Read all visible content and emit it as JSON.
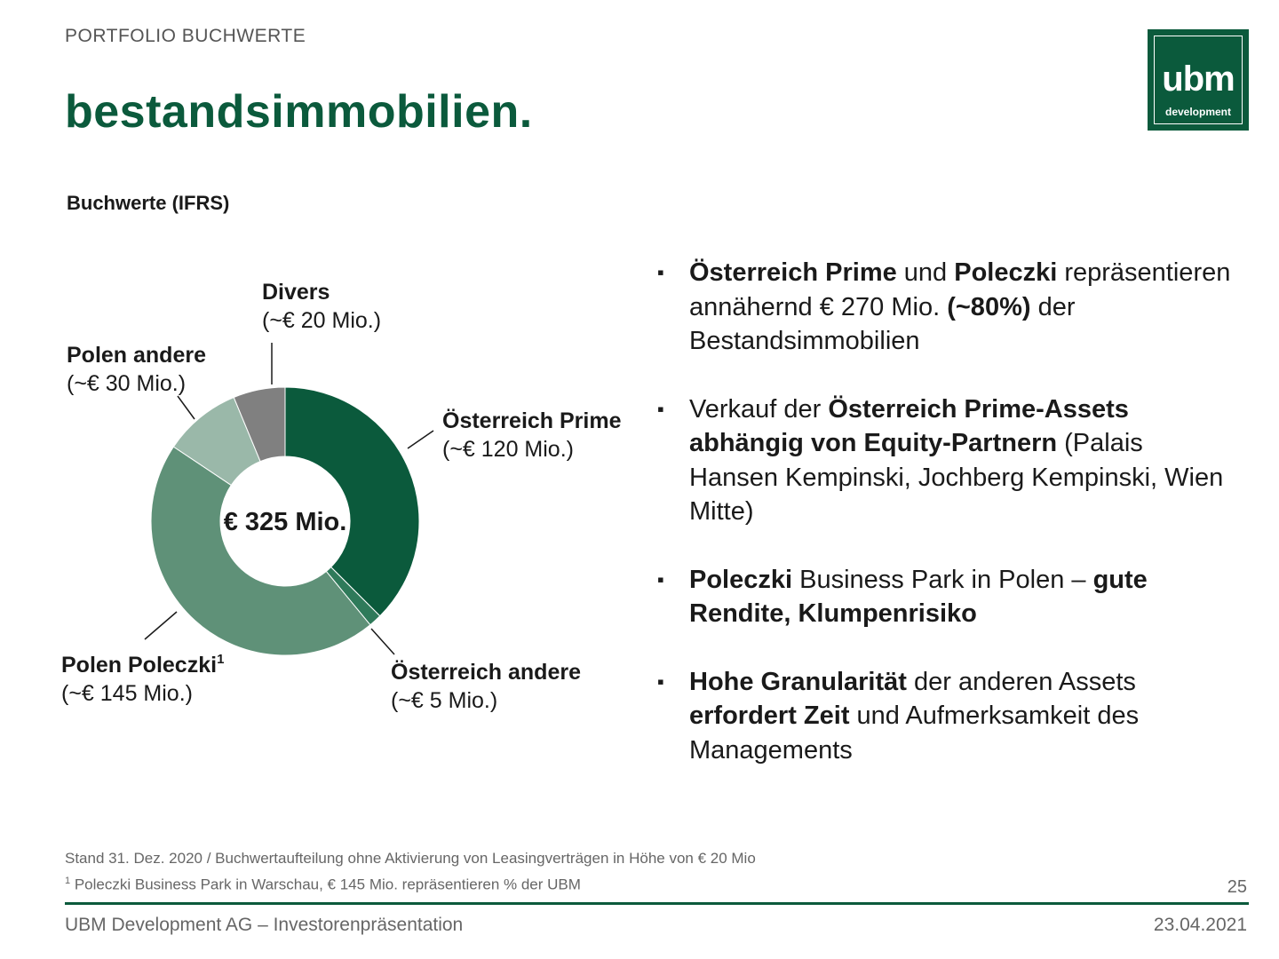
{
  "header": {
    "eyebrow": "PORTFOLIO BUCHWERTE",
    "title": "bestandsimmobilien.",
    "logo_word": "ubm",
    "logo_sub": "development"
  },
  "subtitle": "Buchwerte (IFRS)",
  "chart_data": {
    "type": "pie",
    "style": "donut",
    "title": "Buchwerte (IFRS)",
    "center_label": "€ 325 Mio.",
    "slices": [
      {
        "name": "Österreich Prime",
        "value_label": "(~€ 120 Mio.)",
        "value": 120,
        "color": "#0b5a3c"
      },
      {
        "name": "Österreich andere",
        "value_label": "(~€ 5 Mio.)",
        "value": 5,
        "color": "#2f7a5a"
      },
      {
        "name": "Polen Poleczki",
        "footnote_mark": "1",
        "value_label": "(~€ 145 Mio.)",
        "value": 145,
        "color": "#5f9178"
      },
      {
        "name": "Polen andere",
        "value_label": "(~€ 30 Mio.)",
        "value": 30,
        "color": "#9ab8a9"
      },
      {
        "name": "Divers",
        "value_label": "(~€ 20 Mio.)",
        "value": 20,
        "color": "#808080"
      }
    ]
  },
  "bullets": [
    {
      "parts": [
        [
          "b",
          "Österreich Prime"
        ],
        [
          "t",
          " und "
        ],
        [
          "b",
          "Poleczki"
        ],
        [
          "t",
          " repräsentieren annähernd € 270 Mio. "
        ],
        [
          "b",
          "(~80%)"
        ],
        [
          "t",
          " der Bestandsimmobilien"
        ]
      ]
    },
    {
      "parts": [
        [
          "t",
          "Verkauf der "
        ],
        [
          "b",
          "Österreich Prime-Assets abhängig von Equity-Partnern"
        ],
        [
          "t",
          " (Palais Hansen Kempinski, Jochberg Kempinski, Wien Mitte)"
        ]
      ]
    },
    {
      "parts": [
        [
          "b",
          "Poleczki"
        ],
        [
          "t",
          " Business Park in Polen – "
        ],
        [
          "b",
          "gute Rendite, Klumpenrisiko"
        ]
      ]
    },
    {
      "parts": [
        [
          "b",
          "Hohe Granularität"
        ],
        [
          "t",
          " der anderen Assets "
        ],
        [
          "b",
          "erfordert Zeit"
        ],
        [
          "t",
          " und Aufmerksamkeit des Managements"
        ]
      ]
    }
  ],
  "footnotes": {
    "line1": "Stand 31. Dez. 2020 / Buchwertaufteilung ohne Aktivierung von Leasingverträgen in Höhe von € 20 Mio",
    "line2_mark": "1",
    "line2": " Poleczki Business Park in Warschau, € 145 Mio. repräsentieren % der UBM"
  },
  "page_number": "25",
  "footer": {
    "left": "UBM Development AG – Investorenpräsentation",
    "right": "23.04.2021"
  }
}
